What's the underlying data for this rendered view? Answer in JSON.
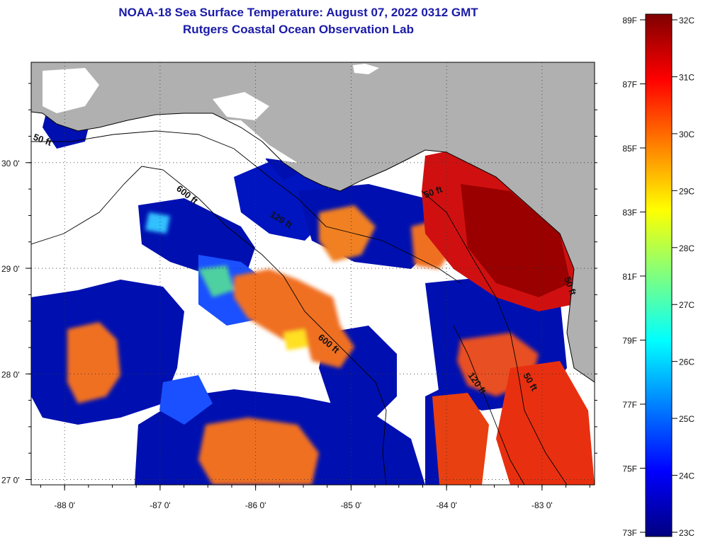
{
  "title": {
    "line1": "NOAA-18 Sea Surface Temperature:  August 07, 2022 0312 GMT",
    "line2": "Rutgers Coastal Ocean Observation Lab"
  },
  "map": {
    "lon_range": [
      -88.35,
      -82.45
    ],
    "lat_range": [
      26.95,
      30.95
    ],
    "lon_ticks": [
      {
        "value": -88,
        "label": "-88 0'"
      },
      {
        "value": -87,
        "label": "-87 0'"
      },
      {
        "value": -86,
        "label": "-86 0'"
      },
      {
        "value": -85,
        "label": "-85 0'"
      },
      {
        "value": -84,
        "label": "-84 0'"
      },
      {
        "value": -83,
        "label": "-83 0'"
      }
    ],
    "lat_ticks": [
      {
        "value": 30,
        "label": "30 0'"
      },
      {
        "value": 29,
        "label": "29 0'"
      },
      {
        "value": 28,
        "label": "28 0'"
      },
      {
        "value": 27,
        "label": "27 0'"
      }
    ],
    "contour_labels": [
      "50 ft",
      "600 ft",
      "120 ft",
      "50 ft",
      "600 ft",
      "120 ft",
      "50 ft",
      "50 ft"
    ],
    "colors": {
      "land": "#b0b0b0",
      "cloud": "#ffffff",
      "coast": "#000000"
    }
  },
  "colorbar": {
    "fahrenheit": [
      "89F",
      "87F",
      "85F",
      "83F",
      "81F",
      "79F",
      "77F",
      "75F",
      "73F"
    ],
    "celsius": [
      "32C",
      "31C",
      "30C",
      "29C",
      "28C",
      "27C",
      "26C",
      "25C",
      "24C",
      "23C"
    ],
    "f_range": [
      73,
      89
    ],
    "c_range": [
      23,
      32
    ],
    "stops": [
      "#00007f",
      "#0000ff",
      "#007fff",
      "#00ffff",
      "#7fff7f",
      "#ffff00",
      "#ff7f00",
      "#ff0000",
      "#7f0000"
    ]
  }
}
